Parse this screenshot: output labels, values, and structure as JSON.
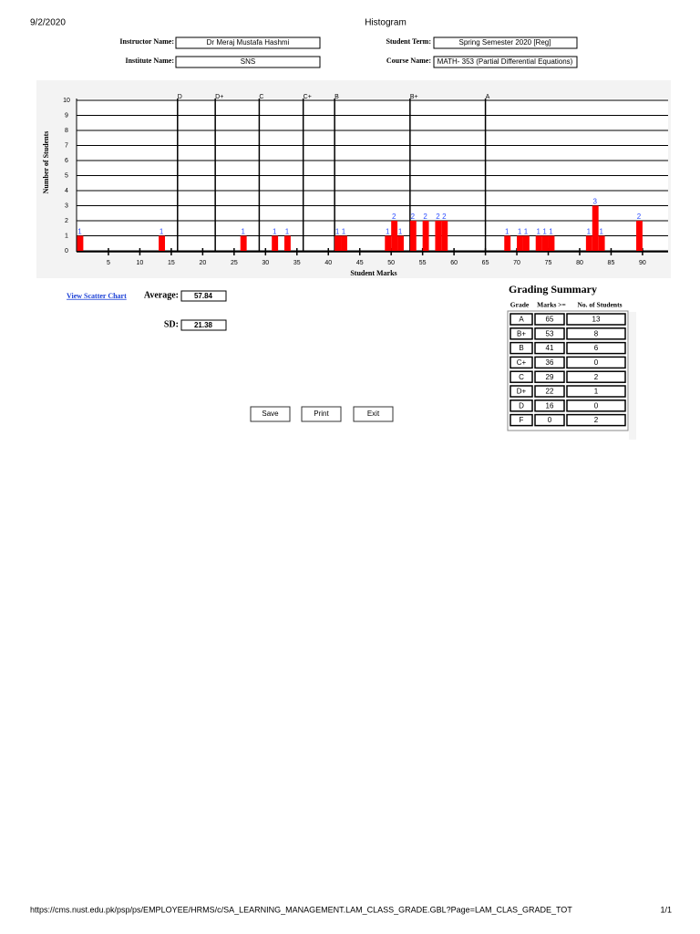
{
  "header": {
    "date": "9/2/2020",
    "title": "Histogram"
  },
  "form": {
    "instructor_label": "Instructor Name:",
    "instructor": "Dr Meraj Mustafa Hashmi",
    "institute_label": "Institute Name:",
    "institute": "SNS",
    "term_label": "Student Term:",
    "term": "Spring Semester 2020 [Reg]",
    "course_label": "Course Name:",
    "course": "MATH- 353 (Partial Differential Equations)"
  },
  "chart_data": {
    "type": "bar",
    "x_label": "Student Marks",
    "y_label": "Number of Students",
    "x": [
      0,
      13,
      26,
      31,
      33,
      41,
      42,
      49,
      50,
      51,
      53,
      55,
      57,
      58,
      68,
      70,
      71,
      73,
      74,
      75,
      81,
      82,
      83,
      89
    ],
    "values": [
      1,
      1,
      1,
      1,
      1,
      1,
      1,
      1,
      2,
      1,
      2,
      2,
      2,
      2,
      1,
      1,
      1,
      1,
      1,
      1,
      1,
      3,
      1,
      2
    ],
    "color": "#ff0000",
    "label_color": "#2b4cff",
    "xlim": [
      0,
      94
    ],
    "xticks": [
      5,
      10,
      15,
      20,
      25,
      30,
      35,
      40,
      45,
      50,
      55,
      60,
      65,
      70,
      75,
      80,
      85,
      90
    ],
    "ylim": [
      0,
      10
    ],
    "yticks": [
      0,
      1,
      2,
      3,
      4,
      5,
      6,
      7,
      8,
      9,
      10
    ],
    "grid": true,
    "grade_lines": [
      {
        "label": "D",
        "value": 16
      },
      {
        "label": "D+",
        "value": 22
      },
      {
        "label": "C",
        "value": 29
      },
      {
        "label": "C+",
        "value": 36
      },
      {
        "label": "B",
        "value": 41
      },
      {
        "label": "B+",
        "value": 53
      },
      {
        "label": "A",
        "value": 65
      }
    ]
  },
  "stats": {
    "link": "View Scatter Chart",
    "average_label": "Average:",
    "average": "57.84",
    "sd_label": "SD:",
    "sd": "21.38"
  },
  "buttons": [
    "Save",
    "Print",
    "Exit"
  ],
  "grading_summary": {
    "title": "Grading Summary",
    "columns": [
      "Grade",
      "Marks >=",
      "No. of Students"
    ],
    "rows": [
      [
        "A",
        65,
        13
      ],
      [
        "B+",
        53,
        8
      ],
      [
        "B",
        41,
        6
      ],
      [
        "C+",
        36,
        0
      ],
      [
        "C",
        29,
        2
      ],
      [
        "D+",
        22,
        1
      ],
      [
        "D",
        16,
        0
      ],
      [
        "F",
        0,
        2
      ]
    ]
  },
  "footer": {
    "url": "https://cms.nust.edu.pk/psp/ps/EMPLOYEE/HRMS/c/SA_LEARNING_MANAGEMENT.LAM_CLASS_GRADE.GBL?Page=LAM_CLAS_GRADE_TOT",
    "page": "1/1"
  }
}
